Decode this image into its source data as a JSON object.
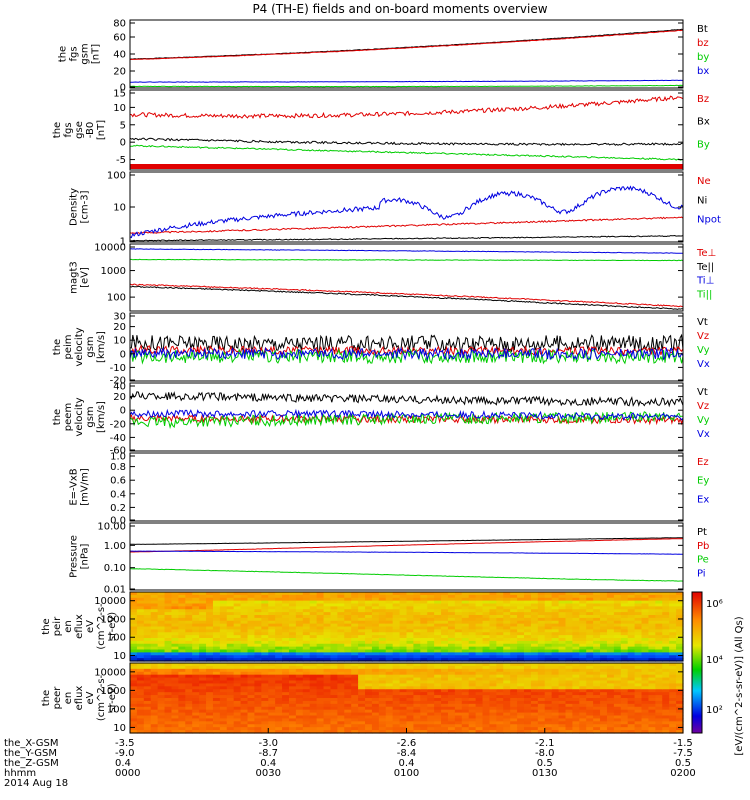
{
  "title": "P4 (TH-E) fields and on-board moments overview",
  "time_axis": {
    "start_hhmm": "0000",
    "end_hhmm": "0200",
    "date": "2014 Aug 18",
    "rows": [
      {
        "label": "the_X-GSM",
        "values": [
          "-3.5",
          "-3.0",
          "-2.6",
          "-2.1",
          "-1.5"
        ]
      },
      {
        "label": "the_Y-GSM",
        "values": [
          "-9.0",
          "-8.7",
          "-8.4",
          "-8.0",
          "-7.5"
        ]
      },
      {
        "label": "the_Z-GSM",
        "values": [
          "0.4",
          "0.4",
          "0.4",
          "0.5",
          "0.5"
        ]
      },
      {
        "label": "hhmm",
        "values": [
          "0000",
          "0030",
          "0100",
          "0130",
          "0200"
        ]
      }
    ],
    "date_label": "2014 Aug 18"
  },
  "colors": {
    "black": "#000000",
    "red": "#e00000",
    "green": "#00cc00",
    "blue": "#0000e0"
  },
  "chart_data": [
    {
      "id": "fgs_gsm",
      "type": "line",
      "ylabel": [
        "the",
        "fgs",
        "gsm",
        "[nT]"
      ],
      "ylim": [
        0,
        80
      ],
      "yscale": "linear",
      "yticks": [
        "0",
        "20",
        "40",
        "60",
        "80"
      ],
      "series": [
        {
          "name": "Bt",
          "color": "#000000",
          "start": 34,
          "end": 69,
          "mid": 44,
          "noise": 0.3
        },
        {
          "name": "bz",
          "color": "#e00000",
          "start": 33.5,
          "end": 68,
          "mid": 43.5,
          "noise": 0.3
        },
        {
          "name": "by",
          "color": "#00cc00",
          "start": 2,
          "end": 3,
          "mid": 1,
          "noise": 0.2
        },
        {
          "name": "bx",
          "color": "#0000e0",
          "start": 7,
          "end": 9,
          "mid": 7,
          "noise": 0.2
        }
      ]
    },
    {
      "id": "fgs_gse",
      "type": "line",
      "ylabel": [
        "the",
        "fgs",
        "gse",
        "-B0",
        "[nT]"
      ],
      "ylim": [
        -8,
        15
      ],
      "yscale": "linear",
      "yticks": [
        "-5",
        "0",
        "5",
        "10",
        "15"
      ],
      "series": [
        {
          "name": "Bz",
          "color": "#e00000",
          "start": 8,
          "end": 13,
          "mid": 6,
          "noise": 0.6
        },
        {
          "name": "Bx",
          "color": "#000000",
          "start": 1,
          "end": -0.5,
          "mid": -1,
          "noise": 0.3
        },
        {
          "name": "By",
          "color": "#00cc00",
          "start": -1,
          "end": -5,
          "mid": -3,
          "noise": 0.2
        }
      ]
    },
    {
      "id": "density",
      "type": "line",
      "ylabel": [
        "Density",
        "[cm-3]"
      ],
      "ylim": [
        1,
        100
      ],
      "yscale": "log",
      "yticks": [
        "1",
        "10",
        "100"
      ],
      "series": [
        {
          "name": "Ne",
          "color": "#e00000",
          "start": 1.8,
          "end": 5,
          "mid": 2.5,
          "noise": 0.05
        },
        {
          "name": "Ni",
          "color": "#000000",
          "start": 1.1,
          "end": 1.5,
          "mid": 1.2,
          "noise": 0.03
        },
        {
          "name": "Npot",
          "color": "#0000e0",
          "start": 1.5,
          "end": 25,
          "mid": 8,
          "noise": 0.15
        }
      ]
    },
    {
      "id": "temperature",
      "type": "line",
      "ylabel": [
        "magt3",
        "[eV]"
      ],
      "ylim": [
        30,
        10000
      ],
      "yscale": "log",
      "yticks": [
        "100",
        "1000",
        "10000"
      ],
      "series": [
        {
          "name": "Te⊥",
          "color": "#e00000",
          "start": 300,
          "end": 45,
          "mid": 90,
          "noise": 0.05
        },
        {
          "name": "Te||",
          "color": "#000000",
          "start": 250,
          "end": 35,
          "mid": 70,
          "noise": 0.05
        },
        {
          "name": "Ti⊥",
          "color": "#0000e0",
          "start": 6500,
          "end": 4500,
          "mid": 5500,
          "noise": 0.02
        },
        {
          "name": "Ti||",
          "color": "#00cc00",
          "start": 2600,
          "end": 2400,
          "mid": 2500,
          "noise": 0.02
        }
      ]
    },
    {
      "id": "peim_velocity",
      "type": "line",
      "ylabel": [
        "the",
        "peim",
        "velocity",
        "gsm",
        "[km/s]"
      ],
      "ylim": [
        -20,
        30
      ],
      "yscale": "linear",
      "yticks": [
        "-20",
        "-10",
        "0",
        "10",
        "20",
        "30"
      ],
      "series": [
        {
          "name": "Vt",
          "color": "#000000",
          "start": 8,
          "end": 8,
          "mid": 7,
          "noise": 6
        },
        {
          "name": "Vz",
          "color": "#e00000",
          "start": 3,
          "end": 2,
          "mid": 2,
          "noise": 3
        },
        {
          "name": "Vy",
          "color": "#00cc00",
          "start": -2,
          "end": -2,
          "mid": -2,
          "noise": 5
        },
        {
          "name": "Vx",
          "color": "#0000e0",
          "start": 0,
          "end": 0,
          "mid": 0,
          "noise": 4
        }
      ]
    },
    {
      "id": "peem_velocity",
      "type": "line",
      "ylabel": [
        "the",
        "peem",
        "velocity",
        "gsm",
        "[km/s]"
      ],
      "ylim": [
        -60,
        40
      ],
      "yscale": "linear",
      "yticks": [
        "-60",
        "-40",
        "-20",
        "0",
        "20",
        "40"
      ],
      "series": [
        {
          "name": "Vt",
          "color": "#000000",
          "start": 22,
          "end": 12,
          "mid": 14,
          "noise": 6
        },
        {
          "name": "Vz",
          "color": "#e00000",
          "start": -12,
          "end": -15,
          "mid": -13,
          "noise": 5
        },
        {
          "name": "Vy",
          "color": "#00cc00",
          "start": -18,
          "end": -10,
          "mid": -12,
          "noise": 8
        },
        {
          "name": "Vx",
          "color": "#0000e0",
          "start": -5,
          "end": -10,
          "mid": -5,
          "noise": 5
        }
      ]
    },
    {
      "id": "e_field",
      "type": "line",
      "ylabel": [
        "E=-VxB",
        "[mV/m]"
      ],
      "ylim": [
        0,
        1.0
      ],
      "yscale": "linear",
      "yticks": [
        "0.0",
        "0.2",
        "0.4",
        "0.6",
        "0.8",
        "1.0"
      ],
      "series": [
        {
          "name": "Ez",
          "color": "#e00000",
          "values": []
        },
        {
          "name": "Ey",
          "color": "#00cc00",
          "values": []
        },
        {
          "name": "Ex",
          "color": "#0000e0",
          "values": []
        }
      ]
    },
    {
      "id": "pressure",
      "type": "line",
      "ylabel": [
        "Pressure",
        "[nPa]"
      ],
      "ylim": [
        0.01,
        10
      ],
      "yscale": "log",
      "yticks": [
        "0.01",
        "0.10",
        "1.00",
        "10.00"
      ],
      "series": [
        {
          "name": "Pt",
          "color": "#000000",
          "start": 1.1,
          "end": 2.2,
          "mid": 1.4,
          "noise": 0.01
        },
        {
          "name": "Pb",
          "color": "#e00000",
          "start": 0.5,
          "end": 2.0,
          "mid": 0.8,
          "noise": 0.01
        },
        {
          "name": "Pe",
          "color": "#00cc00",
          "start": 0.09,
          "end": 0.025,
          "mid": 0.035,
          "noise": 0.02
        },
        {
          "name": "Pi",
          "color": "#0000e0",
          "start": 0.55,
          "end": 0.4,
          "mid": 0.5,
          "noise": 0.01
        }
      ]
    },
    {
      "id": "peir_spectrogram",
      "type": "heatmap",
      "ylabel": [
        "the",
        "peir",
        "en",
        "eflux",
        "eV",
        "(cm^2-s-",
        "sr-eV)"
      ],
      "ylim": [
        5,
        30000
      ],
      "yscale": "log",
      "yticks": [
        "10",
        "100",
        "1000",
        "10000"
      ],
      "profile": "ion"
    },
    {
      "id": "peer_spectrogram",
      "type": "heatmap",
      "ylabel": [
        "the",
        "peer",
        "en",
        "eflux",
        "eV",
        "(cm^2-s-",
        "sr-eV)"
      ],
      "ylim": [
        5,
        30000
      ],
      "yscale": "log",
      "yticks": [
        "10",
        "100",
        "1000",
        "10000"
      ],
      "profile": "electron"
    }
  ],
  "colorbar": {
    "ticks": [
      "10²",
      "10⁴",
      "10⁶"
    ],
    "label": "[eV/(cm^2-s-sr-eV)] (All Qs)"
  }
}
